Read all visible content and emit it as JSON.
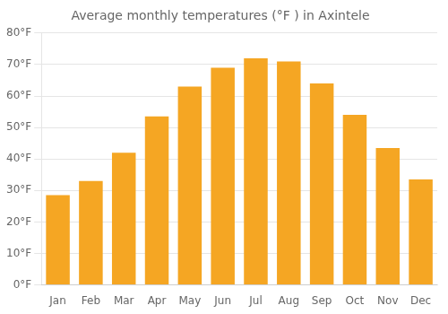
{
  "chart_data": {
    "type": "bar",
    "title": "Average monthly temperatures (°F ) in Axintele",
    "categories": [
      "Jan",
      "Feb",
      "Mar",
      "Apr",
      "May",
      "Jun",
      "Jul",
      "Aug",
      "Sep",
      "Oct",
      "Nov",
      "Dec"
    ],
    "values": [
      28.5,
      33.0,
      42.0,
      53.5,
      63.0,
      69.0,
      72.0,
      71.0,
      64.0,
      54.0,
      43.5,
      33.5
    ],
    "color": "#F5A623",
    "ylim": [
      0,
      80
    ],
    "yticks": [
      {
        "value": 0,
        "label": "0°F"
      },
      {
        "value": 10,
        "label": "10°F"
      },
      {
        "value": 20,
        "label": "20°F"
      },
      {
        "value": 30,
        "label": "30°F"
      },
      {
        "value": 40,
        "label": "40°F"
      },
      {
        "value": 50,
        "label": "50°F"
      },
      {
        "value": 60,
        "label": "60°F"
      },
      {
        "value": 70,
        "label": "70°F"
      },
      {
        "value": 80,
        "label": "80°F"
      }
    ],
    "grid": true
  }
}
